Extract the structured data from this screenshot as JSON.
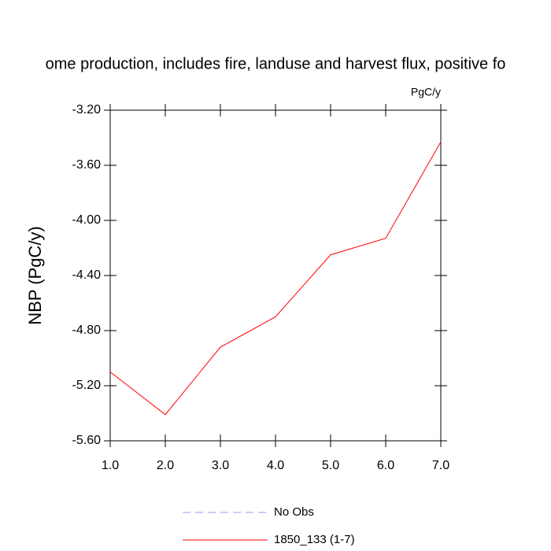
{
  "chart_data": {
    "type": "line",
    "title": "ome production, includes fire, landuse and harvest flux, positive fo",
    "units": "PgC/y",
    "y_label": "NBP  (PgC/y)",
    "x": [
      1,
      2,
      3,
      4,
      5,
      6,
      7
    ],
    "xlim": [
      1,
      7
    ],
    "xticks": [
      {
        "value": 1,
        "label": "1.0"
      },
      {
        "value": 2,
        "label": "2.0"
      },
      {
        "value": 3,
        "label": "3.0"
      },
      {
        "value": 4,
        "label": "4.0"
      },
      {
        "value": 5,
        "label": "5.0"
      },
      {
        "value": 6,
        "label": "6.0"
      },
      {
        "value": 7,
        "label": "7.0"
      }
    ],
    "ylim": [
      -5.6,
      -3.2
    ],
    "yticks": [
      {
        "value": -5.6,
        "label": "-5.60"
      },
      {
        "value": -5.2,
        "label": "-5.20"
      },
      {
        "value": -4.8,
        "label": "-4.80"
      },
      {
        "value": -4.4,
        "label": "-4.40"
      },
      {
        "value": -4.0,
        "label": "-4.00"
      },
      {
        "value": -3.6,
        "label": "-3.60"
      },
      {
        "value": -3.2,
        "label": "-3.20"
      }
    ],
    "series": [
      {
        "name": "No Obs",
        "color": "#9999ff",
        "dashed": true,
        "values": [
          null,
          null,
          null,
          null,
          null,
          null,
          null
        ]
      },
      {
        "name": "1850_133 (1-7)",
        "color": "#ff0000",
        "dashed": false,
        "values": [
          -5.1,
          -5.41,
          -4.92,
          -4.7,
          -4.25,
          -4.13,
          -3.43
        ]
      }
    ]
  }
}
